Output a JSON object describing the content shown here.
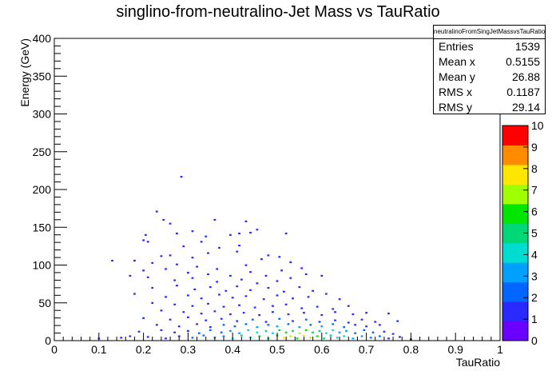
{
  "title": "singlino-from-neutralino-Jet Mass vs TauRatio",
  "stats": {
    "name": "neutralinoFromSingJetMassvsTauRatio",
    "rows": [
      {
        "label": "Entries",
        "value": "1539"
      },
      {
        "label": "Mean x",
        "value": "0.5155"
      },
      {
        "label": "Mean y",
        "value": "26.88"
      },
      {
        "label": "RMS x",
        "value": "0.1187"
      },
      {
        "label": "RMS y",
        "value": "29.14"
      }
    ]
  },
  "chart_data": {
    "type": "heatmap",
    "title": "singlino-from-neutralino-Jet Mass vs TauRatio",
    "xlabel": "TauRatio",
    "ylabel": "Energy (GeV)",
    "xlim": [
      0,
      1
    ],
    "ylim": [
      0,
      400
    ],
    "x_ticks": [
      "0",
      "0.1",
      "0.2",
      "0.3",
      "0.4",
      "0.5",
      "0.6",
      "0.7",
      "0.8",
      "0.9",
      "1"
    ],
    "y_ticks": [
      "0",
      "50",
      "100",
      "150",
      "200",
      "250",
      "300",
      "350",
      "400"
    ],
    "colorbar": {
      "min": 0,
      "max": 10,
      "ticks": [
        "0",
        "1",
        "2",
        "3",
        "4",
        "5",
        "6",
        "7",
        "8",
        "9",
        "10"
      ],
      "colors": [
        "#6a00ff",
        "#2a2aff",
        "#0066ff",
        "#00a0ff",
        "#00dcd0",
        "#00d878",
        "#00e600",
        "#a0ff00",
        "#ffe600",
        "#ff8c00",
        "#ff0000"
      ]
    },
    "bins": {
      "x_bin_width": 0.005,
      "y_bin_width": 2
    },
    "points": [
      [
        0.285,
        217,
        1
      ],
      [
        0.23,
        171,
        1
      ],
      [
        0.245,
        160,
        1
      ],
      [
        0.26,
        155,
        1
      ],
      [
        0.36,
        160,
        1
      ],
      [
        0.43,
        158,
        1
      ],
      [
        0.205,
        140,
        1
      ],
      [
        0.2,
        133,
        1
      ],
      [
        0.21,
        131,
        1
      ],
      [
        0.275,
        142,
        1
      ],
      [
        0.31,
        145,
        1
      ],
      [
        0.34,
        138,
        1
      ],
      [
        0.33,
        131,
        1
      ],
      [
        0.395,
        140,
        1
      ],
      [
        0.415,
        142,
        1
      ],
      [
        0.44,
        143,
        1
      ],
      [
        0.455,
        147,
        1
      ],
      [
        0.52,
        142,
        1
      ],
      [
        0.29,
        125,
        1
      ],
      [
        0.37,
        123,
        1
      ],
      [
        0.415,
        126,
        1
      ],
      [
        0.24,
        112,
        1
      ],
      [
        0.26,
        113,
        1
      ],
      [
        0.31,
        110,
        1
      ],
      [
        0.345,
        116,
        1
      ],
      [
        0.41,
        118,
        1
      ],
      [
        0.48,
        113,
        1
      ],
      [
        0.505,
        111,
        1
      ],
      [
        0.18,
        106,
        1
      ],
      [
        0.22,
        103,
        1
      ],
      [
        0.275,
        101,
        1
      ],
      [
        0.32,
        98,
        1
      ],
      [
        0.365,
        95,
        1
      ],
      [
        0.43,
        100,
        1
      ],
      [
        0.465,
        108,
        1
      ],
      [
        0.53,
        104,
        1
      ],
      [
        0.555,
        96,
        1
      ],
      [
        0.13,
        106,
        1
      ],
      [
        0.2,
        93,
        1
      ],
      [
        0.25,
        95,
        1
      ],
      [
        0.3,
        90,
        1
      ],
      [
        0.345,
        88,
        1
      ],
      [
        0.395,
        86,
        1
      ],
      [
        0.44,
        91,
        1
      ],
      [
        0.475,
        86,
        1
      ],
      [
        0.51,
        93,
        1
      ],
      [
        0.17,
        86,
        1
      ],
      [
        0.21,
        84,
        1
      ],
      [
        0.27,
        80,
        1
      ],
      [
        0.31,
        83,
        1
      ],
      [
        0.365,
        78,
        1
      ],
      [
        0.42,
        81,
        1
      ],
      [
        0.455,
        76,
        1
      ],
      [
        0.5,
        79,
        1
      ],
      [
        0.53,
        83,
        1
      ],
      [
        0.565,
        88,
        1
      ],
      [
        0.6,
        86,
        1
      ],
      [
        0.22,
        70,
        1
      ],
      [
        0.275,
        73,
        1
      ],
      [
        0.315,
        68,
        1
      ],
      [
        0.35,
        71,
        1
      ],
      [
        0.385,
        66,
        1
      ],
      [
        0.41,
        72,
        1
      ],
      [
        0.44,
        67,
        1
      ],
      [
        0.48,
        70,
        1
      ],
      [
        0.515,
        65,
        1
      ],
      [
        0.55,
        71,
        1
      ],
      [
        0.58,
        66,
        1
      ],
      [
        0.18,
        62,
        1
      ],
      [
        0.25,
        58,
        1
      ],
      [
        0.3,
        60,
        1
      ],
      [
        0.33,
        56,
        1
      ],
      [
        0.37,
        61,
        1
      ],
      [
        0.4,
        57,
        1
      ],
      [
        0.43,
        59,
        1
      ],
      [
        0.47,
        55,
        1
      ],
      [
        0.5,
        60,
        1
      ],
      [
        0.535,
        56,
        1
      ],
      [
        0.57,
        58,
        1
      ],
      [
        0.61,
        62,
        1
      ],
      [
        0.64,
        55,
        1
      ],
      [
        0.22,
        50,
        1
      ],
      [
        0.27,
        48,
        1
      ],
      [
        0.31,
        46,
        1
      ],
      [
        0.345,
        49,
        1
      ],
      [
        0.38,
        45,
        1
      ],
      [
        0.415,
        47,
        1
      ],
      [
        0.45,
        44,
        1
      ],
      [
        0.49,
        46,
        1
      ],
      [
        0.52,
        48,
        1
      ],
      [
        0.555,
        43,
        1
      ],
      [
        0.59,
        45,
        1
      ],
      [
        0.625,
        42,
        1
      ],
      [
        0.66,
        46,
        1
      ],
      [
        0.24,
        40,
        1
      ],
      [
        0.29,
        38,
        1
      ],
      [
        0.33,
        36,
        1
      ],
      [
        0.36,
        39,
        1
      ],
      [
        0.395,
        35,
        1
      ],
      [
        0.425,
        37,
        1
      ],
      [
        0.46,
        34,
        1
      ],
      [
        0.49,
        38,
        1
      ],
      [
        0.525,
        35,
        1
      ],
      [
        0.56,
        37,
        1
      ],
      [
        0.6,
        34,
        1
      ],
      [
        0.63,
        38,
        1
      ],
      [
        0.67,
        35,
        1
      ],
      [
        0.7,
        37,
        1
      ],
      [
        0.75,
        36,
        1
      ],
      [
        0.2,
        30,
        1
      ],
      [
        0.26,
        28,
        1
      ],
      [
        0.3,
        31,
        1
      ],
      [
        0.34,
        27,
        1
      ],
      [
        0.375,
        29,
        1
      ],
      [
        0.41,
        26,
        1
      ],
      [
        0.445,
        28,
        2
      ],
      [
        0.475,
        25,
        1
      ],
      [
        0.505,
        29,
        2
      ],
      [
        0.535,
        26,
        1
      ],
      [
        0.565,
        28,
        2
      ],
      [
        0.595,
        25,
        1
      ],
      [
        0.63,
        27,
        1
      ],
      [
        0.66,
        24,
        1
      ],
      [
        0.69,
        28,
        1
      ],
      [
        0.72,
        25,
        1
      ],
      [
        0.77,
        26,
        1
      ],
      [
        0.23,
        21,
        1
      ],
      [
        0.28,
        19,
        1
      ],
      [
        0.32,
        22,
        1
      ],
      [
        0.35,
        18,
        1
      ],
      [
        0.38,
        21,
        2
      ],
      [
        0.405,
        19,
        2
      ],
      [
        0.43,
        22,
        2
      ],
      [
        0.455,
        18,
        3
      ],
      [
        0.48,
        21,
        2
      ],
      [
        0.5,
        19,
        3
      ],
      [
        0.525,
        22,
        2
      ],
      [
        0.55,
        18,
        3
      ],
      [
        0.575,
        21,
        2
      ],
      [
        0.6,
        19,
        3
      ],
      [
        0.625,
        22,
        2
      ],
      [
        0.65,
        18,
        2
      ],
      [
        0.675,
        21,
        1
      ],
      [
        0.7,
        19,
        1
      ],
      [
        0.73,
        21,
        1
      ],
      [
        0.19,
        12,
        1
      ],
      [
        0.24,
        14,
        1
      ],
      [
        0.27,
        11,
        1
      ],
      [
        0.3,
        13,
        1
      ],
      [
        0.325,
        10,
        2
      ],
      [
        0.35,
        14,
        2
      ],
      [
        0.375,
        11,
        2
      ],
      [
        0.395,
        13,
        3
      ],
      [
        0.415,
        10,
        3
      ],
      [
        0.435,
        14,
        4
      ],
      [
        0.455,
        11,
        4
      ],
      [
        0.475,
        13,
        5
      ],
      [
        0.49,
        10,
        4
      ],
      [
        0.505,
        14,
        5
      ],
      [
        0.52,
        11,
        6
      ],
      [
        0.535,
        13,
        5
      ],
      [
        0.55,
        10,
        7
      ],
      [
        0.565,
        14,
        6
      ],
      [
        0.58,
        11,
        5
      ],
      [
        0.595,
        13,
        5
      ],
      [
        0.61,
        10,
        4
      ],
      [
        0.625,
        14,
        4
      ],
      [
        0.64,
        11,
        3
      ],
      [
        0.655,
        13,
        3
      ],
      [
        0.675,
        10,
        2
      ],
      [
        0.695,
        14,
        2
      ],
      [
        0.715,
        11,
        2
      ],
      [
        0.74,
        12,
        1
      ],
      [
        0.76,
        9,
        1
      ],
      [
        0.1,
        3,
        1
      ],
      [
        0.15,
        4,
        1
      ],
      [
        0.17,
        6,
        1
      ],
      [
        0.21,
        5,
        1
      ],
      [
        0.25,
        3,
        1
      ],
      [
        0.28,
        6,
        1
      ],
      [
        0.31,
        4,
        2
      ],
      [
        0.335,
        7,
        2
      ],
      [
        0.36,
        4,
        3
      ],
      [
        0.38,
        6,
        3
      ],
      [
        0.4,
        3,
        4
      ],
      [
        0.42,
        7,
        5
      ],
      [
        0.44,
        4,
        4
      ],
      [
        0.46,
        6,
        6
      ],
      [
        0.48,
        3,
        5
      ],
      [
        0.5,
        7,
        6
      ],
      [
        0.515,
        4,
        8
      ],
      [
        0.53,
        6,
        7
      ],
      [
        0.545,
        3,
        6
      ],
      [
        0.56,
        7,
        8
      ],
      [
        0.575,
        4,
        7
      ],
      [
        0.59,
        6,
        6
      ],
      [
        0.605,
        3,
        5
      ],
      [
        0.62,
        7,
        5
      ],
      [
        0.635,
        4,
        4
      ],
      [
        0.65,
        6,
        4
      ],
      [
        0.67,
        3,
        3
      ],
      [
        0.69,
        6,
        3
      ],
      [
        0.71,
        4,
        2
      ],
      [
        0.73,
        6,
        2
      ],
      [
        0.75,
        3,
        1
      ],
      [
        0.775,
        5,
        1
      ],
      [
        0.8,
        2,
        1
      ]
    ]
  }
}
